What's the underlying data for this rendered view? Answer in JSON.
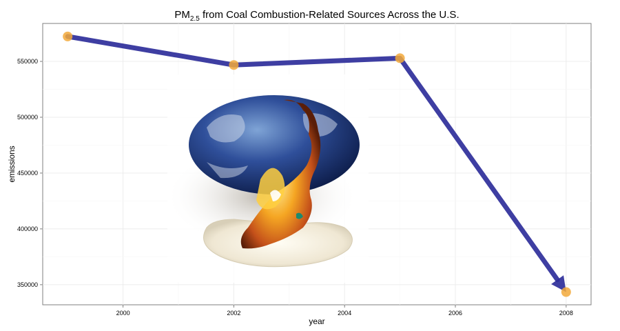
{
  "chart_data": {
    "type": "line",
    "title": {
      "main": "PM",
      "subscript": "2.5",
      "rest": " from Coal Combustion-Related Sources Across the U.S."
    },
    "xlabel": "year",
    "ylabel": "emissions",
    "x": [
      1999,
      2002,
      2005,
      2008
    ],
    "values": [
      572346,
      546789,
      552881,
      343432
    ],
    "xlim": [
      1998.55,
      2008.45
    ],
    "ylim": [
      332000,
      584000
    ],
    "xticks": [
      2000,
      2002,
      2004,
      2006,
      2008
    ],
    "yticks": [
      350000,
      400000,
      450000,
      500000,
      550000
    ],
    "grid": true,
    "line_color": "#2e2e9a",
    "point_color": "#f2a93b",
    "arrow_at_end": true,
    "background_image": "melting-earth-egg-image"
  }
}
